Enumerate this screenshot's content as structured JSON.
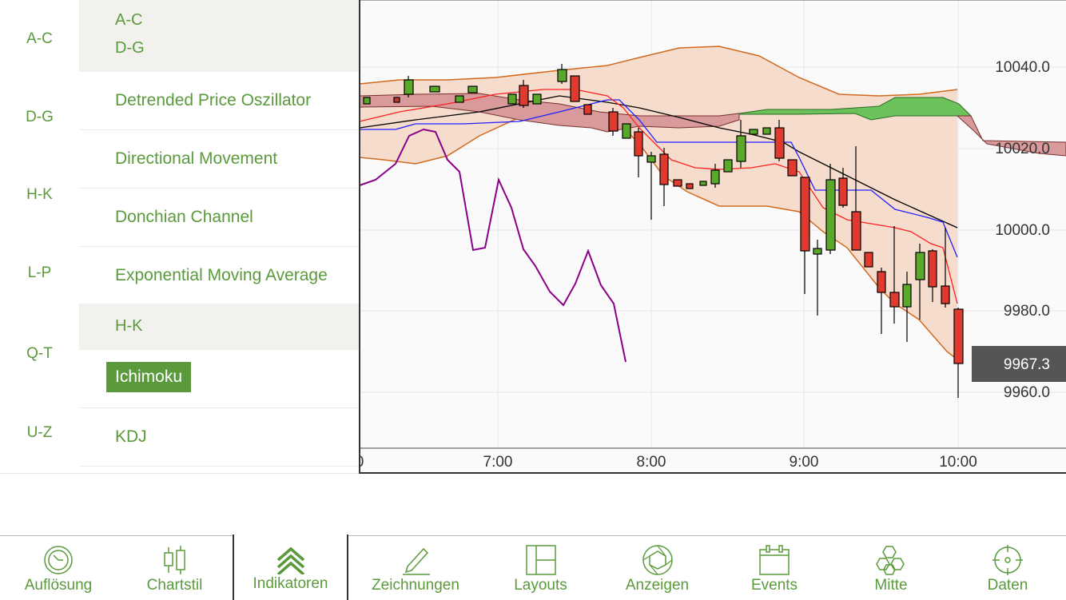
{
  "alpha_index": [
    "A-C",
    "D-G",
    "H-K",
    "L-P",
    "Q-T",
    "U-Z"
  ],
  "indicator_list": {
    "section_header_partial": "A-C",
    "section_header_dg": "D-G",
    "items_dg": [
      "Detrended Price Oszillator",
      "Directional Movement",
      "Donchian Channel",
      "Exponential Moving Average"
    ],
    "section_header_hk": "H-K",
    "selected_item": "Ichimoku",
    "items_hk_after": [
      "KDJ"
    ]
  },
  "chart": {
    "price_labels": [
      "10040.0",
      "10020.0",
      "10000.0",
      "9980.0",
      "9960.0"
    ],
    "time_labels": [
      "0",
      "7:00",
      "8:00",
      "9:00",
      "10:00"
    ],
    "current_price": "9967.3"
  },
  "chart_data": {
    "type": "candlestick",
    "y_ticks": [
      10040,
      10020,
      10000,
      9980,
      9960
    ],
    "x_ticks": [
      "7:00",
      "8:00",
      "9:00",
      "10:00"
    ],
    "current_price": 9967.3
  },
  "toolbar": {
    "items": [
      {
        "label": "Auflösung",
        "icon": "clock-icon"
      },
      {
        "label": "Chartstil",
        "icon": "candlestick-icon"
      },
      {
        "label": "Indikatoren",
        "icon": "chevrons-up-icon",
        "active": true
      },
      {
        "label": "Zeichnungen",
        "icon": "pencil-icon"
      },
      {
        "label": "Layouts",
        "icon": "layout-icon"
      },
      {
        "label": "Anzeigen",
        "icon": "aperture-icon"
      },
      {
        "label": "Events",
        "icon": "calendar-icon"
      },
      {
        "label": "Mitte",
        "icon": "hexagons-icon"
      },
      {
        "label": "Daten",
        "icon": "crosshair-icon"
      }
    ]
  },
  "colors": {
    "accent": "#5b9a3c",
    "cloud_bear": "#d89a9a",
    "cloud_bull": "#6bc25a",
    "band": "#f4d5c4"
  }
}
